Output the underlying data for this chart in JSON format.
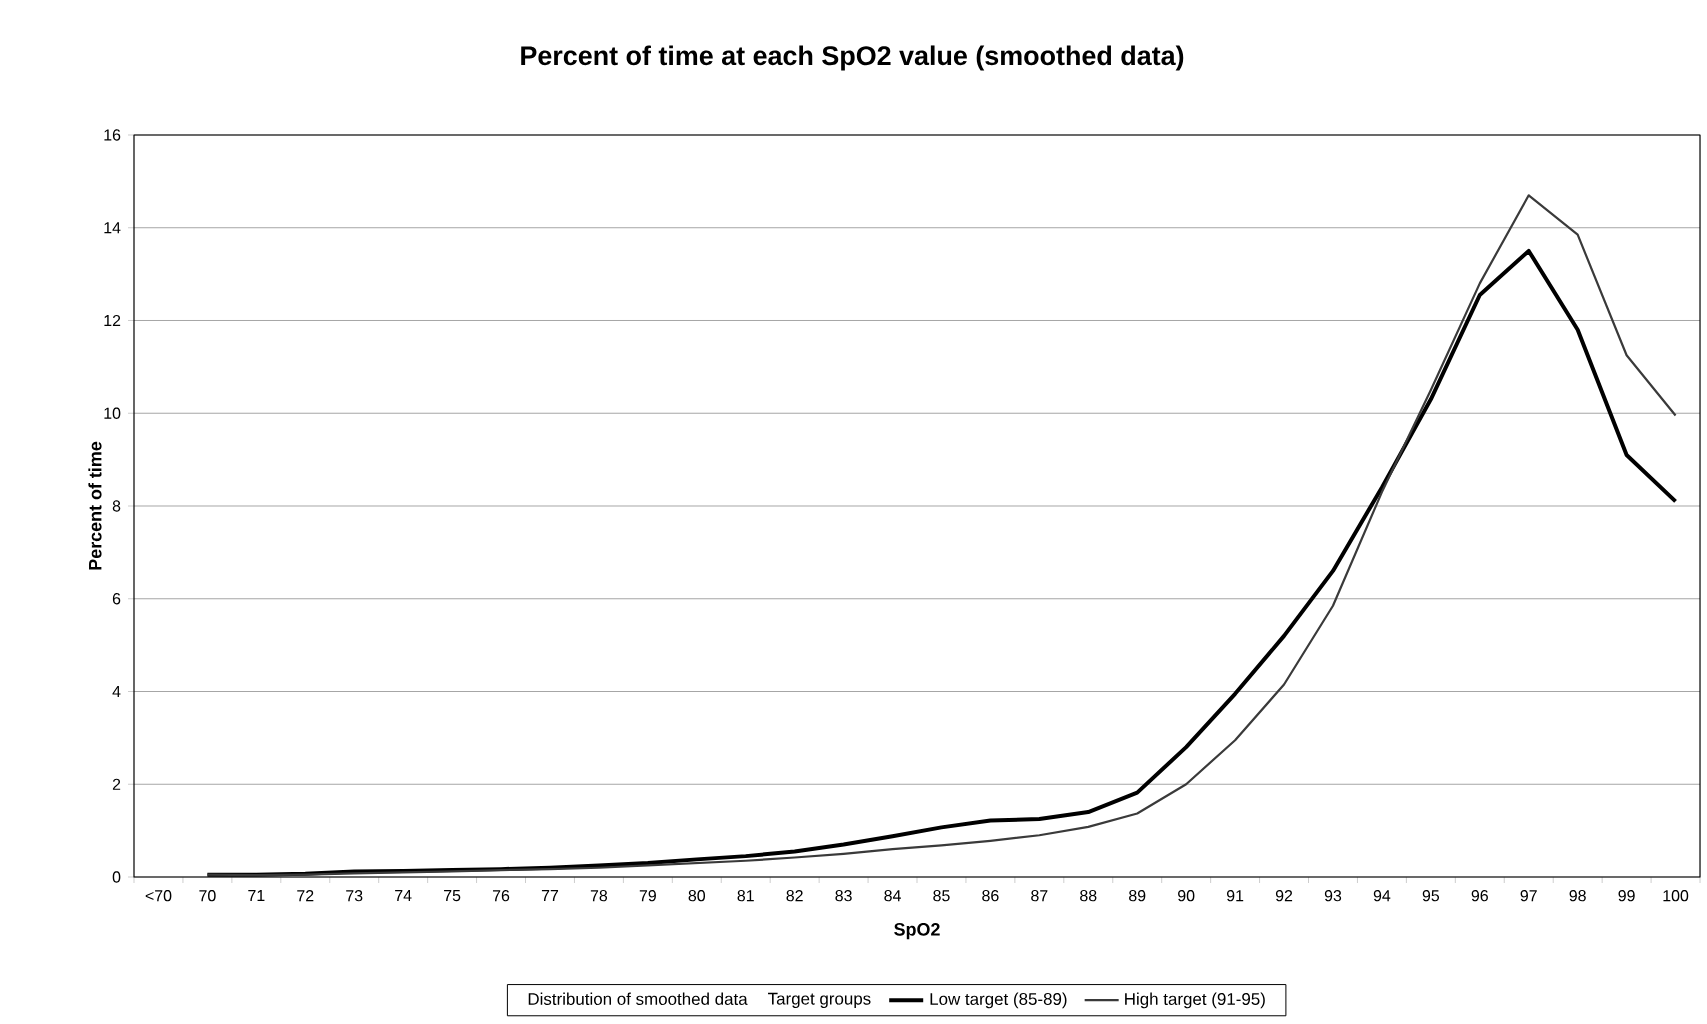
{
  "chart_data": {
    "type": "line",
    "title": "Percent of time at each SpO2 value (smoothed data)",
    "xlabel": "SpO2",
    "ylabel": "Percent of time",
    "legend_title": "Target groups",
    "annotations": [
      "Distribution of smoothed data"
    ],
    "categories": [
      "<70",
      "70",
      "71",
      "72",
      "73",
      "74",
      "75",
      "76",
      "77",
      "78",
      "79",
      "80",
      "81",
      "82",
      "83",
      "84",
      "85",
      "86",
      "87",
      "88",
      "89",
      "90",
      "91",
      "92",
      "93",
      "94",
      "95",
      "96",
      "97",
      "98",
      "99",
      "100"
    ],
    "series": [
      {
        "name": "Low target (85-89)",
        "color": "#000000",
        "values": [
          null,
          0.05,
          0.05,
          0.07,
          0.12,
          0.13,
          0.15,
          0.17,
          0.2,
          0.25,
          0.3,
          0.38,
          0.45,
          0.55,
          0.7,
          0.88,
          1.07,
          1.22,
          1.25,
          1.4,
          1.82,
          2.8,
          3.95,
          5.2,
          6.6,
          8.4,
          10.3,
          12.55,
          13.5,
          11.8,
          9.1,
          8.1
        ]
      },
      {
        "name": "High target (91-95)",
        "color": "#3a3a3a",
        "values": [
          null,
          0.05,
          0.04,
          0.05,
          0.08,
          0.1,
          0.12,
          0.15,
          0.17,
          0.2,
          0.25,
          0.3,
          0.35,
          0.42,
          0.5,
          0.6,
          0.68,
          0.78,
          0.9,
          1.08,
          1.37,
          2.0,
          2.95,
          4.15,
          5.85,
          8.3,
          10.5,
          12.8,
          14.7,
          13.85,
          11.25,
          9.95
        ]
      }
    ],
    "ylim": [
      0,
      16
    ],
    "yticks": [
      0,
      2,
      4,
      6,
      8,
      10,
      12,
      14,
      16
    ],
    "grid": "y",
    "legend": "bottom",
    "marker": "none",
    "line_style": "solid"
  }
}
